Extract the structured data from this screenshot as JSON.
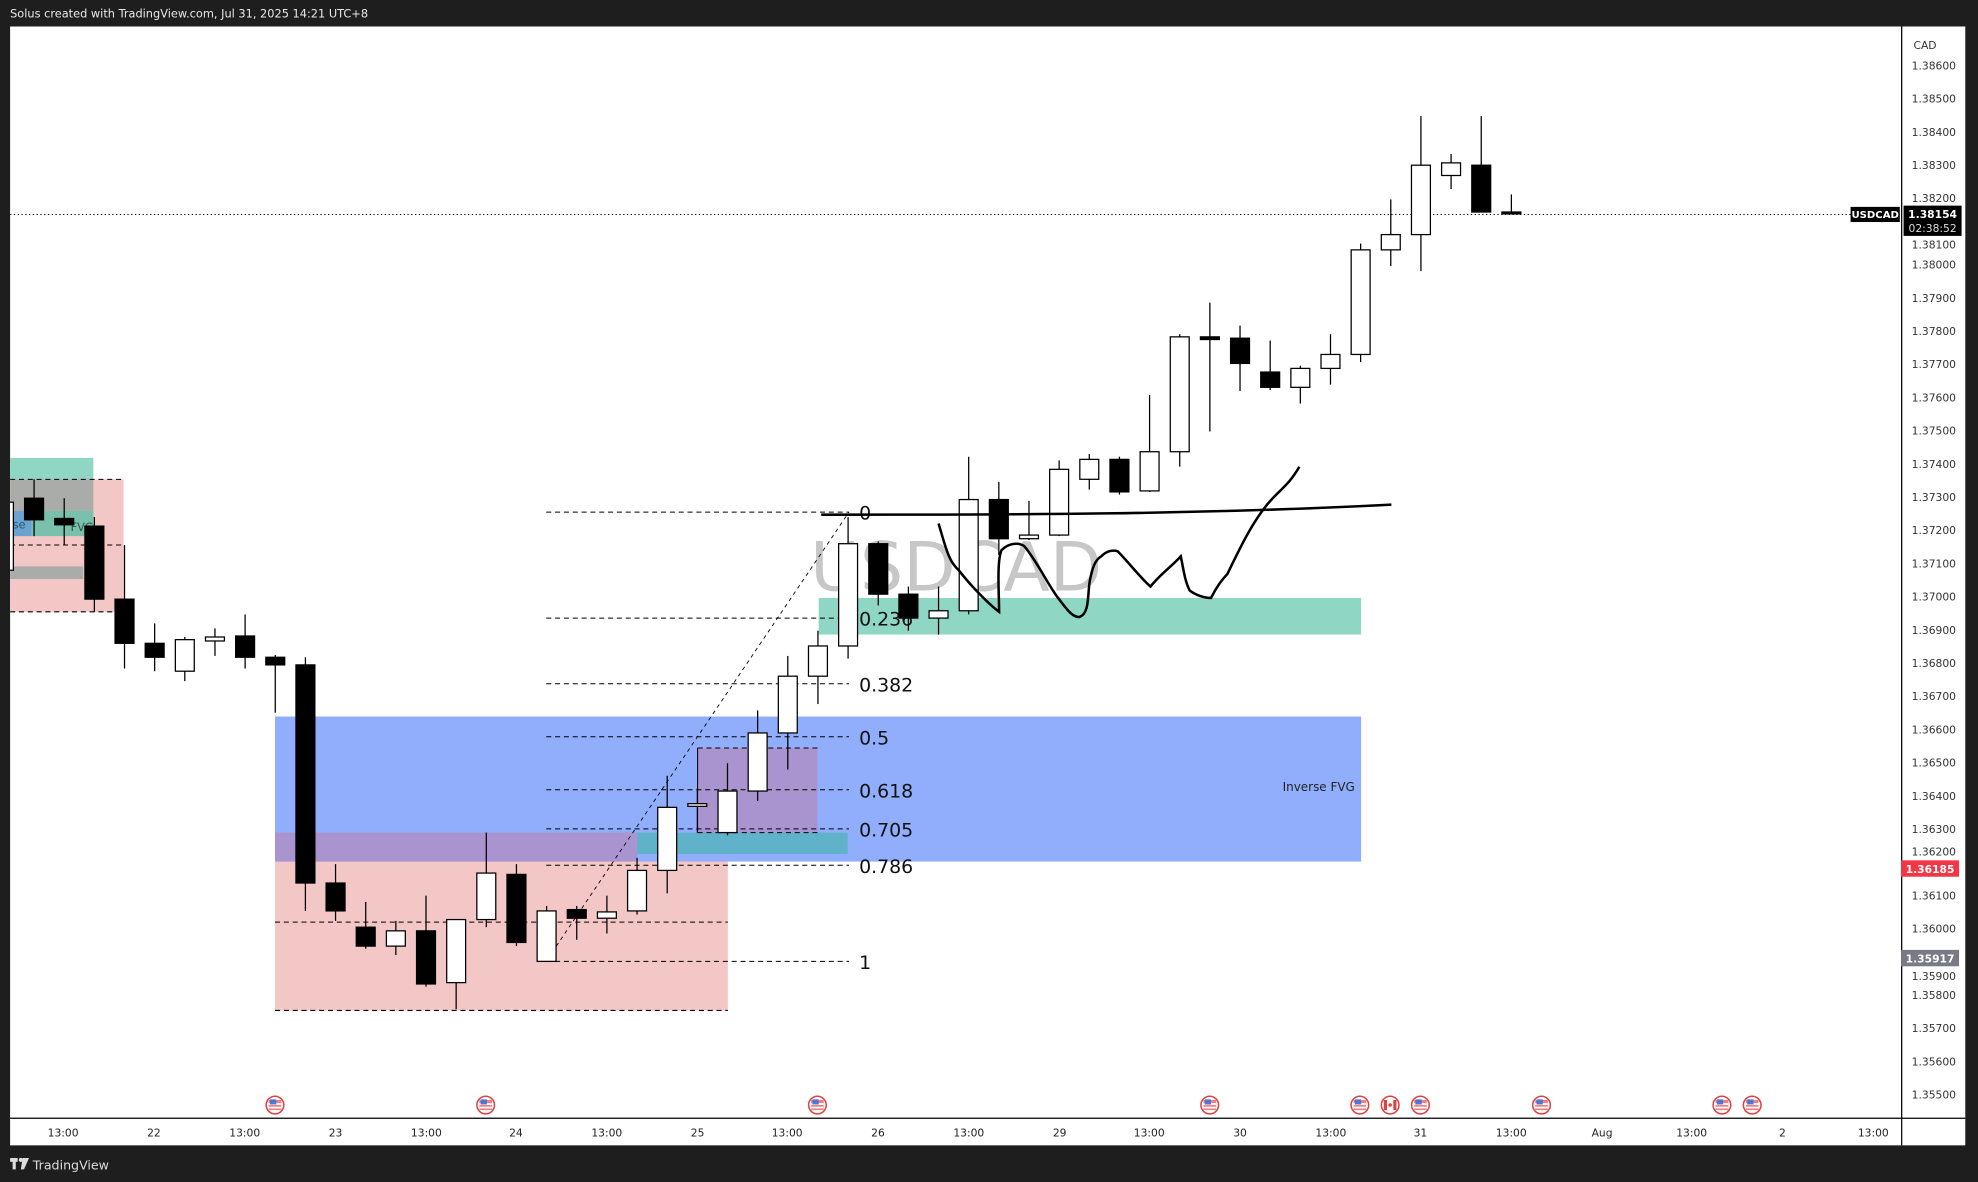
{
  "header": {
    "title": "Solus created with TradingView.com, Jul 31, 2025 14:21 UTC+8"
  },
  "footer": {
    "brand": "TradingView",
    "logo_icon": "tradingview-logo-icon"
  },
  "chart": {
    "symbol": "USDCAD",
    "watermark": "USDCAD",
    "currency": "CAD",
    "timeframe_per_candle_hours": 4,
    "last_price": "1.38154",
    "countdown": "02:38:52",
    "badge_red": "1.36185",
    "badge_gray": "1.35917",
    "colors": {
      "bull": "#ffffff",
      "bear": "#000000",
      "badge_red": "#f23645",
      "badge_gray": "#787b86",
      "fvg_blue": "#91aefc",
      "teal": "#8fd6c4",
      "pink": "#f4c7c7",
      "purple": "#a994cf"
    },
    "price_ticks": [
      "1.38600",
      "1.38500",
      "1.38400",
      "1.38300",
      "1.38200",
      "1.38100",
      "1.38000",
      "1.37900",
      "1.37800",
      "1.37700",
      "1.37600",
      "1.37500",
      "1.37400",
      "1.37300",
      "1.37200",
      "1.37100",
      "1.37000",
      "1.36900",
      "1.36800",
      "1.36700",
      "1.36600",
      "1.36500",
      "1.36400",
      "1.36300",
      "1.36200",
      "1.36100",
      "1.36000",
      "1.35900",
      "1.35800",
      "1.35700",
      "1.35600",
      "1.35500"
    ],
    "time_labels": [
      "13:00",
      "22",
      "13:00",
      "23",
      "13:00",
      "24",
      "13:00",
      "25",
      "13:00",
      "26",
      "13:00",
      "29",
      "13:00",
      "30",
      "13:00",
      "31",
      "13:00",
      "Aug",
      "13:00",
      "2",
      "13:00"
    ],
    "annotations": {
      "inverse_fvg": "Inverse FVG",
      "left_box_a": "se",
      "left_box_b": "FVG"
    },
    "fib": {
      "price_0": 1.37255,
      "price_1": 1.35902,
      "levels": [
        {
          "value": 0,
          "label": "0"
        },
        {
          "value": 0.236,
          "label": "0.236"
        },
        {
          "value": 0.382,
          "label": "0.382"
        },
        {
          "value": 0.5,
          "label": "0.5"
        },
        {
          "value": 0.618,
          "label": "0.618"
        },
        {
          "value": 0.705,
          "label": "0.705"
        },
        {
          "value": 0.786,
          "label": "0.786"
        },
        {
          "value": 1,
          "label": "1"
        }
      ]
    },
    "event_flags": [
      "us",
      "us",
      "us",
      "us",
      "us",
      "ca",
      "us",
      "us",
      "us",
      "us"
    ],
    "candles": [
      [
        1.3708,
        1.37308,
        1.3707,
        1.37285
      ],
      [
        1.37297,
        1.37354,
        1.37183,
        1.37232
      ],
      [
        1.37236,
        1.37297,
        1.37156,
        1.37217
      ],
      [
        1.37213,
        1.3724,
        1.36955,
        1.36993
      ],
      [
        1.36993,
        1.37156,
        1.36784,
        1.3686
      ],
      [
        1.3686,
        1.3692,
        1.36776,
        1.36818
      ],
      [
        1.36776,
        1.36879,
        1.36746,
        1.36871
      ],
      [
        1.36867,
        1.36905,
        1.36822,
        1.36879
      ],
      [
        1.36882,
        1.36947,
        1.36784,
        1.36818
      ],
      [
        1.36818,
        1.36825,
        1.36651,
        1.36795
      ],
      [
        1.36795,
        1.36818,
        1.36054,
        1.36138
      ],
      [
        1.36138,
        1.36195,
        1.36024,
        1.36054
      ],
      [
        1.36005,
        1.36081,
        1.3594,
        1.35948
      ],
      [
        1.35948,
        1.36024,
        1.35921,
        1.35994
      ],
      [
        1.35994,
        1.361,
        1.35826,
        1.35834
      ],
      [
        1.35838,
        1.36028,
        1.35758,
        1.36028
      ],
      [
        1.36028,
        1.3629,
        1.36005,
        1.36168
      ],
      [
        1.36164,
        1.36195,
        1.35948,
        1.35959
      ],
      [
        1.35902,
        1.36069,
        1.35902,
        1.36054
      ],
      [
        1.36058,
        1.36069,
        1.35967,
        1.36032
      ],
      [
        1.36032,
        1.361,
        1.35986,
        1.36051
      ],
      [
        1.36054,
        1.36214,
        1.36043,
        1.36176
      ],
      [
        1.36176,
        1.36461,
        1.36107,
        1.36366
      ],
      [
        1.36369,
        1.36423,
        1.3629,
        1.36377
      ],
      [
        1.3629,
        1.36499,
        1.36282,
        1.36415
      ],
      [
        1.36415,
        1.36658,
        1.36385,
        1.3659
      ],
      [
        1.3659,
        1.36822,
        1.3648,
        1.36761
      ],
      [
        1.36761,
        1.36898,
        1.36677,
        1.36852
      ],
      [
        1.36852,
        1.3724,
        1.36814,
        1.3716
      ],
      [
        1.3716,
        1.37167,
        1.36974,
        1.37008
      ],
      [
        1.37008,
        1.37031,
        1.36898,
        1.36936
      ],
      [
        1.36936,
        1.37031,
        1.36886,
        1.36958
      ],
      [
        1.36958,
        1.37422,
        1.36947,
        1.37293
      ],
      [
        1.37293,
        1.37346,
        1.37126,
        1.37175
      ],
      [
        1.37175,
        1.37289,
        1.37171,
        1.37186
      ],
      [
        1.37186,
        1.37411,
        1.37183,
        1.37384
      ],
      [
        1.37354,
        1.3743,
        1.37323,
        1.37414
      ],
      [
        1.37414,
        1.37422,
        1.37308,
        1.37316
      ],
      [
        1.37319,
        1.37608,
        1.37316,
        1.37437
      ],
      [
        1.37437,
        1.37791,
        1.37392,
        1.37783
      ],
      [
        1.37783,
        1.37886,
        1.37498,
        1.37775
      ],
      [
        1.37779,
        1.37817,
        1.3762,
        1.37703
      ],
      [
        1.37677,
        1.37772,
        1.37623,
        1.37631
      ],
      [
        1.37631,
        1.37696,
        1.37582,
        1.37688
      ],
      [
        1.37688,
        1.37791,
        1.37639,
        1.3773
      ],
      [
        1.3773,
        1.38064,
        1.37707,
        1.38045
      ],
      [
        1.38045,
        1.38197,
        1.37996,
        1.38091
      ],
      [
        1.38091,
        1.38448,
        1.37981,
        1.383
      ],
      [
        1.38269,
        1.38334,
        1.38228,
        1.38307
      ],
      [
        1.383,
        1.38448,
        1.38159,
        1.38159
      ],
      [
        1.38159,
        1.38212,
        1.38152,
        1.38154
      ]
    ]
  }
}
